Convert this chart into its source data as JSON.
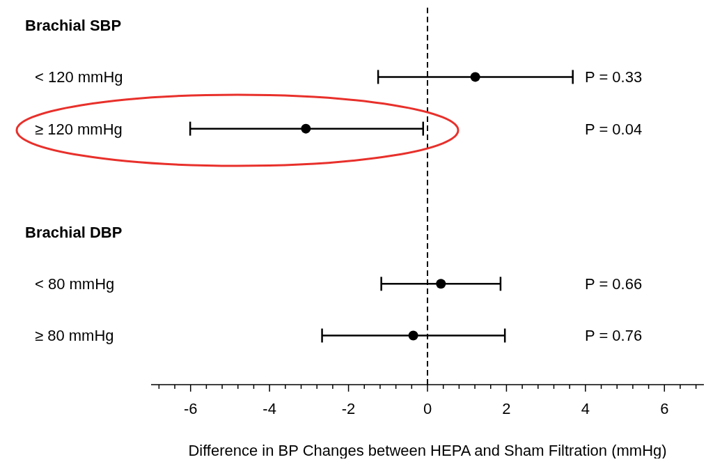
{
  "chart_data": {
    "type": "scatter",
    "orientation": "horizontal",
    "categories": [
      "Brachial SBP",
      "< 120 mmHg",
      "≥ 120 mmHg",
      null,
      "Brachial DBP",
      "< 80 mmHg",
      "≥ 80 mmHg"
    ],
    "values": [
      null,
      1.21,
      -3.08,
      null,
      null,
      0.34,
      -0.36
    ],
    "errors": [
      null,
      [
        -1.25,
        3.68
      ],
      [
        -6.01,
        -0.11
      ],
      null,
      null,
      [
        -1.17,
        1.85
      ],
      [
        -2.67,
        1.96
      ]
    ],
    "color": "#000000",
    "marker": "circle",
    "grid": false,
    "legend": false,
    "xlim": [
      -7,
      7
    ],
    "xticks": [
      {
        "value": -6.8,
        "label": null
      },
      {
        "value": -6.4,
        "label": null
      },
      -6,
      {
        "value": -5.6,
        "label": null
      },
      {
        "value": -5.2,
        "label": null
      },
      {
        "value": -4.8,
        "label": null
      },
      {
        "value": -4.4,
        "label": null
      },
      -4,
      {
        "value": -3.6,
        "label": null
      },
      {
        "value": -3.2,
        "label": null
      },
      {
        "value": -2.8,
        "label": null
      },
      {
        "value": -2.4,
        "label": null
      },
      -2,
      {
        "value": -1.6,
        "label": null
      },
      {
        "value": -1.2,
        "label": null
      },
      {
        "value": -0.8,
        "label": null
      },
      {
        "value": -0.4,
        "label": null
      },
      0,
      {
        "value": 0.4,
        "label": null
      },
      {
        "value": 0.8,
        "label": null
      },
      {
        "value": 1.2,
        "label": null
      },
      {
        "value": 1.6,
        "label": null
      },
      2,
      {
        "value": 2.4,
        "label": null
      },
      {
        "value": 2.8,
        "label": null
      },
      {
        "value": 3.2,
        "label": null
      },
      {
        "value": 3.6,
        "label": null
      },
      4,
      {
        "value": 4.4,
        "label": null
      },
      {
        "value": 4.8,
        "label": null
      },
      {
        "value": 5.2,
        "label": null
      },
      {
        "value": 5.6,
        "label": null
      },
      6,
      {
        "value": 6.4,
        "label": null
      },
      {
        "value": 6.8,
        "label": null
      }
    ],
    "xlabel": "Difference in BP Changes between HEPA and Sham Filtration (mmHg)",
    "ref_lines": [
      {
        "axis": "x",
        "value": 0,
        "line_style": "dashed",
        "color": "#000000"
      }
    ],
    "annotations": [
      "P = 0.33",
      "P = 0.04",
      "P = 0.66",
      "P = 0.76"
    ]
  }
}
